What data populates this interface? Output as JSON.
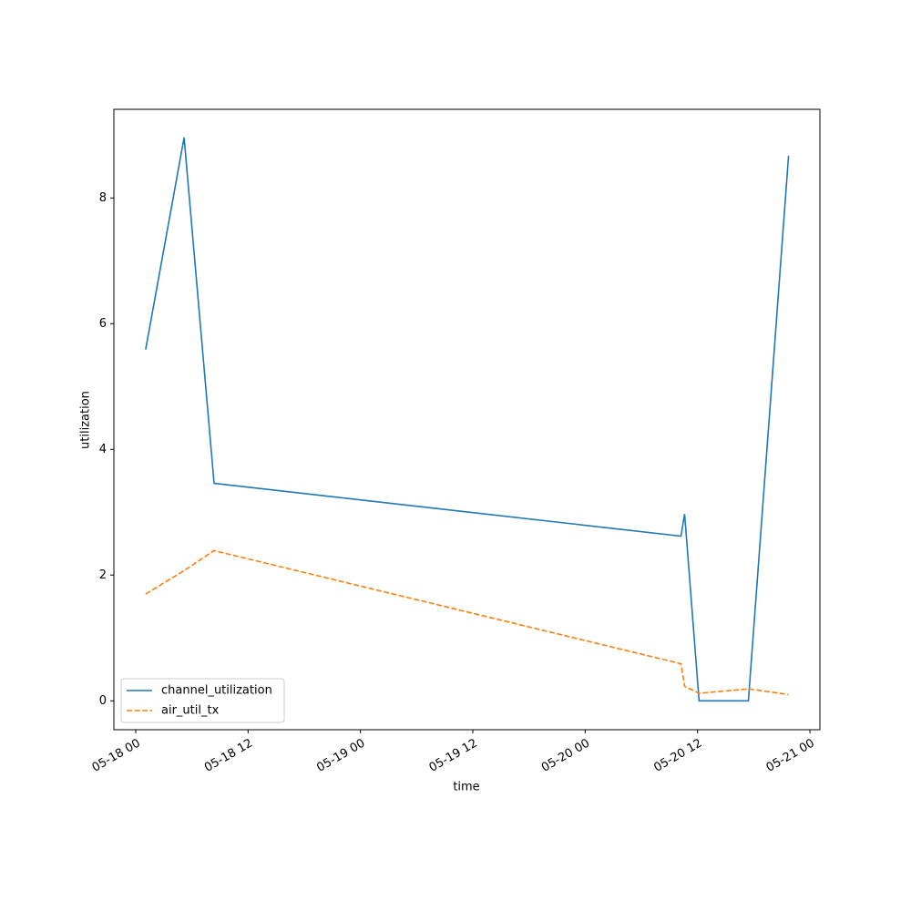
{
  "chart_data": {
    "type": "line",
    "xlabel": "time",
    "ylabel": "utilization",
    "x": [
      "05-18 01:04",
      "05-18 05:10",
      "05-18 08:22",
      "05-20 10:14",
      "05-20 10:37",
      "05-20 12:10",
      "05-20 17:26",
      "05-20 21:43"
    ],
    "series": [
      {
        "name": "channel_utilization",
        "color": "#1f77b4",
        "dashed": false,
        "values": [
          5.59,
          8.96,
          3.46,
          2.62,
          2.97,
          0,
          0,
          8.67
        ]
      },
      {
        "name": "air_util_tx",
        "color": "#ff7f0e",
        "dashed": true,
        "values": [
          1.7,
          2.07,
          2.39,
          0.59,
          0.23,
          0.12,
          0.19,
          0.1
        ]
      }
    ],
    "xlim": [
      "05-17 21:40",
      "05-21 01:04"
    ],
    "xticks": [
      "05-18 00",
      "05-18 12",
      "05-19 00",
      "05-19 12",
      "05-20 00",
      "05-20 12",
      "05-21 00"
    ],
    "ylim": [
      -0.46,
      9.41
    ],
    "yticks": [
      0,
      2,
      4,
      6,
      8
    ],
    "grid": false,
    "legend": "lower left"
  }
}
